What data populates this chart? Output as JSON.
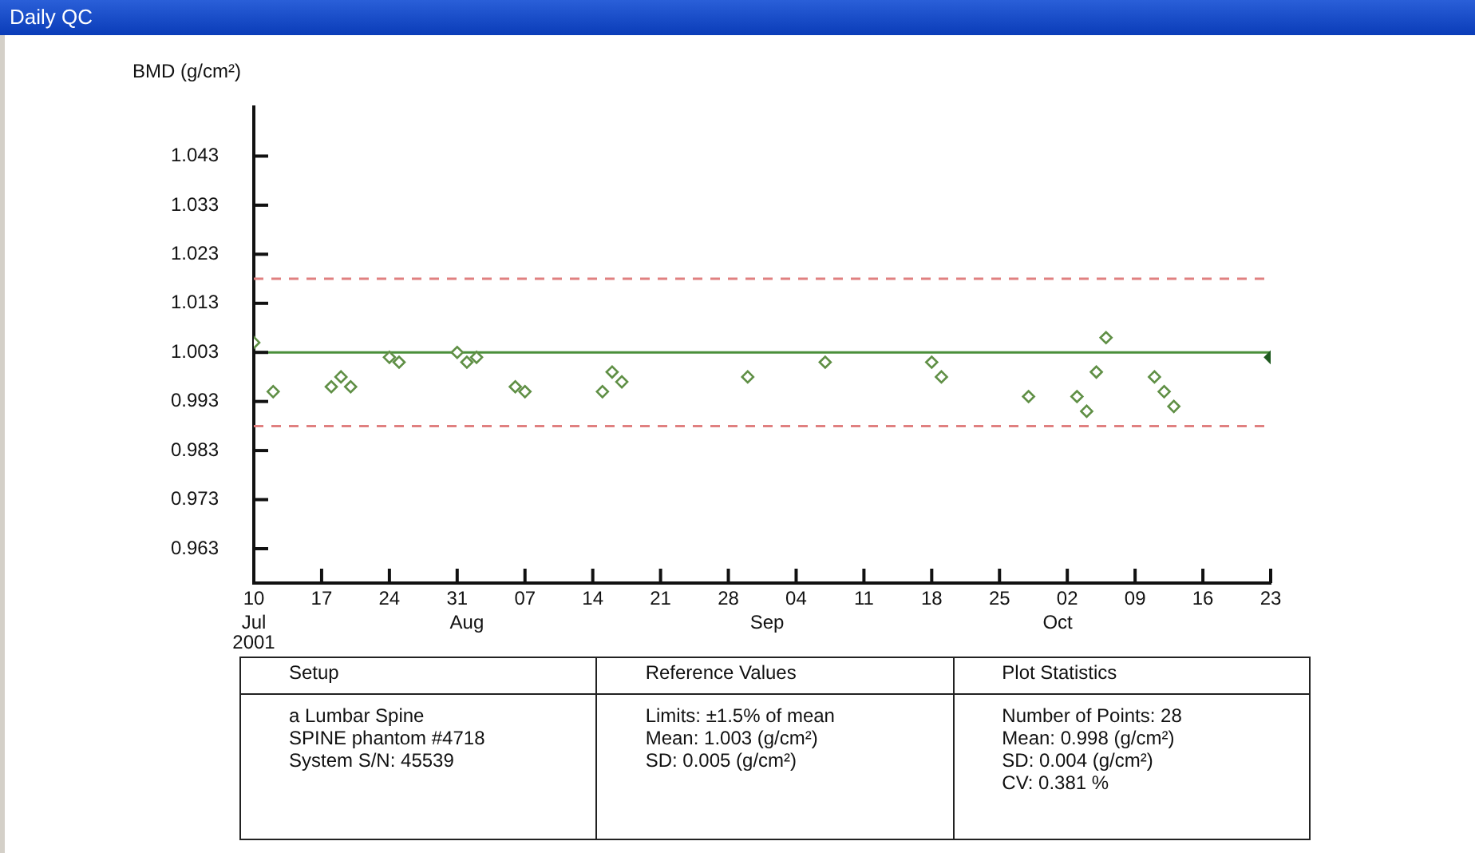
{
  "chart_data": {
    "type": "scatter",
    "title": "Daily QC",
    "ylabel": "BMD (g/cm²)",
    "x": [
      "2001-07-10",
      "2001-07-12",
      "2001-07-18",
      "2001-07-19",
      "2001-07-20",
      "2001-07-24",
      "2001-07-25",
      "2001-07-31",
      "2001-08-01",
      "2001-08-02",
      "2001-08-06",
      "2001-08-07",
      "2001-08-15",
      "2001-08-16",
      "2001-08-17",
      "2001-08-30",
      "2001-09-07",
      "2001-09-18",
      "2001-09-19",
      "2001-09-28",
      "2001-10-03",
      "2001-10-04",
      "2001-10-05",
      "2001-10-06",
      "2001-10-11",
      "2001-10-12",
      "2001-10-13",
      "2001-10-23"
    ],
    "values": [
      1.005,
      0.995,
      0.996,
      0.998,
      0.996,
      1.002,
      1.001,
      1.003,
      1.001,
      1.002,
      0.996,
      0.995,
      0.995,
      0.999,
      0.997,
      0.998,
      1.001,
      1.001,
      0.998,
      0.994,
      0.994,
      0.991,
      0.999,
      1.006,
      0.998,
      0.995,
      0.992,
      1.002
    ],
    "colors": [
      "#5f8f45",
      "#5f8f45",
      "#5f8f45",
      "#5f8f45",
      "#5f8f45",
      "#5f8f45",
      "#5f8f45",
      "#5f8f45",
      "#5f8f45",
      "#5f8f45",
      "#5f8f45",
      "#5f8f45",
      "#5f8f45",
      "#5f8f45",
      "#5f8f45",
      "#5f8f45",
      "#5f8f45",
      "#5f8f45",
      "#5f8f45",
      "#5f8f45",
      "#5f8f45",
      "#5f8f45",
      "#5f8f45",
      "#5f8f45",
      "#5f8f45",
      "#5f8f45",
      "#5f8f45",
      "#1f5a1f"
    ],
    "marker": "diamond",
    "xlim": [
      "2001-07-10",
      "2001-10-23"
    ],
    "xticks": [
      {
        "value": "2001-07-10",
        "label": "10"
      },
      {
        "value": "2001-07-17",
        "label": "17"
      },
      {
        "value": "2001-07-24",
        "label": "24"
      },
      {
        "value": "2001-07-31",
        "label": "31"
      },
      {
        "value": "2001-08-07",
        "label": "07"
      },
      {
        "value": "2001-08-14",
        "label": "14"
      },
      {
        "value": "2001-08-21",
        "label": "21"
      },
      {
        "value": "2001-08-28",
        "label": "28"
      },
      {
        "value": "2001-09-04",
        "label": "04"
      },
      {
        "value": "2001-09-11",
        "label": "11"
      },
      {
        "value": "2001-09-18",
        "label": "18"
      },
      {
        "value": "2001-09-25",
        "label": "25"
      },
      {
        "value": "2001-10-02",
        "label": "02"
      },
      {
        "value": "2001-10-09",
        "label": "09"
      },
      {
        "value": "2001-10-16",
        "label": "16"
      },
      {
        "value": "2001-10-23",
        "label": "23"
      }
    ],
    "ylim": [
      0.956,
      1.053
    ],
    "yticks": [
      0.963,
      0.973,
      0.983,
      0.993,
      1.003,
      1.013,
      1.023,
      1.033,
      1.043
    ],
    "ref_lines": [
      {
        "axis": "y",
        "value": 1.003,
        "color": "#4a8f3a",
        "line_style": "solid"
      },
      {
        "axis": "y",
        "value": 1.018,
        "color": "#e08080",
        "line_style": "dashed"
      },
      {
        "axis": "y",
        "value": 0.988,
        "color": "#e08080",
        "line_style": "dashed"
      }
    ],
    "grid": false,
    "legend": false,
    "x2lim": [
      "2001-07-10",
      "2001-10-23"
    ],
    "x2ticks": [
      {
        "value": "2001-07-10",
        "label": "Jul\n2001"
      },
      {
        "value": "2001-08-01",
        "label": "Aug"
      },
      {
        "value": "2001-09-01",
        "label": "Sep"
      },
      {
        "value": "2001-10-01",
        "label": "Oct"
      }
    ],
    "annotations": [
      "Setup",
      "Reference Values",
      "Plot Statistics",
      "a Lumbar Spine\nSPINE phantom #4718\nSystem S/N:  45539",
      "Limits:  ±1.5% of mean\nMean:  1.003 (g/cm²)\nSD:  0.005 (g/cm²)",
      "Number of Points: 28\nMean: 0.998 (g/cm²)\nSD:  0.004 (g/cm²)\nCV:  0.381 %"
    ]
  }
}
